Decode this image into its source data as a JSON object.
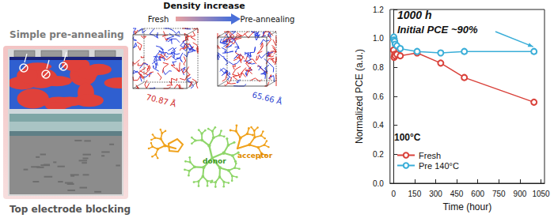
{
  "chart_data": {
    "type": "line",
    "x_label": "Time (hour)",
    "y_label": "Normalized PCE (a.u.)",
    "xlim": [
      -25,
      1075
    ],
    "xticks": [
      0,
      150,
      300,
      450,
      600,
      750,
      900,
      1050
    ],
    "ylim": [
      0,
      1.2
    ],
    "yticks": [
      {
        "value": 0,
        "label": "0.0"
      },
      0.2,
      0.4,
      0.6,
      0.8,
      {
        "value": 1,
        "label": "1.0"
      },
      1.2
    ],
    "grid": false,
    "legend": "lower left",
    "annotations": [
      "1000 h",
      "Initial PCE ~90%",
      "100°C"
    ],
    "series": [
      {
        "name": "Fresh",
        "color": "#d9413a",
        "marker": "circle",
        "x": [
          0,
          4,
          8,
          12,
          24,
          48,
          168,
          336,
          504,
          1000
        ],
        "values": [
          0.92,
          0.87,
          0.89,
          0.88,
          0.89,
          0.88,
          0.9,
          0.83,
          0.73,
          0.56
        ]
      },
      {
        "name": "Pre 140°C",
        "color": "#3aaed8",
        "marker": "circle",
        "x": [
          0,
          2,
          4,
          8,
          12,
          24,
          48,
          168,
          336,
          504,
          1000
        ],
        "values": [
          1.0,
          1.01,
          0.99,
          0.98,
          0.96,
          0.95,
          0.93,
          0.91,
          0.9,
          0.91,
          0.91
        ]
      }
    ]
  },
  "diagram": {
    "title": "Density increase",
    "boxes": [
      {
        "label": "Fresh",
        "size_label": "70.87 Å"
      },
      {
        "label": "Pre-annealing",
        "size_label": "65.66 Å"
      }
    ],
    "device": {
      "top_label": "Simple pre-annealing",
      "bottom_label": "Top electrode blocking"
    },
    "molecule": {
      "donor": "donor",
      "acceptor": "acceptor"
    }
  }
}
